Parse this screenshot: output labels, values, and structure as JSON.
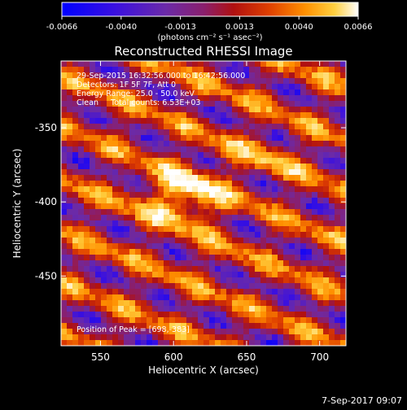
{
  "colorbar": {
    "ticks": [
      "-0.0066",
      "-0.0040",
      "-0.0013",
      "0.0013",
      "0.0040",
      "0.0066"
    ],
    "unit_label": "(photons cm⁻² s⁻¹ asec⁻²)",
    "colormap_colors": [
      "#0000ff",
      "#3a10e0",
      "#6b2aa8",
      "#8a1f6c",
      "#b01010",
      "#e04000",
      "#ff9000",
      "#ffd040",
      "#ffffff"
    ]
  },
  "plot": {
    "title": "Reconstructed RHESSI Image",
    "info_lines": [
      "29-Sep-2015 16:32:56.000 to 16:42:56.000",
      "Detectors: 1F 5F 7F, Att 0",
      "Energy Range: 25.0 - 50.0 keV",
      "Clean     Total counts: 6.53E+03"
    ],
    "peak_label": "Position of Peak = [698,-383]",
    "xlabel": "Heliocentric X (arcsec)",
    "ylabel": "Heliocentric Y (arcsec)",
    "xticks": [
      "550",
      "600",
      "650",
      "700"
    ],
    "yticks": [
      "-350",
      "-400",
      "-450"
    ],
    "xlim": [
      523,
      718
    ],
    "ylim": [
      -497,
      -305
    ],
    "xtick_values": [
      550,
      600,
      650,
      700
    ],
    "ytick_values": [
      -350,
      -400,
      -450
    ]
  },
  "footer": {
    "timestamp": "7-Sep-2017 09:07"
  }
}
